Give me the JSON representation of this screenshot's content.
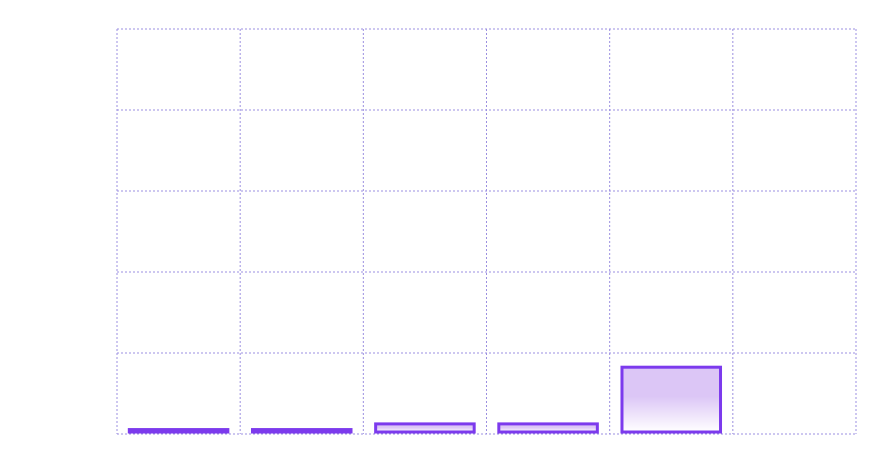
{
  "chart_data": {
    "type": "bar",
    "title": "",
    "xlabel": "",
    "ylabel": "",
    "categories": [
      "",
      "",
      "",
      "",
      "",
      ""
    ],
    "values": [
      0.3,
      0.3,
      1.0,
      1.0,
      8.0,
      0
    ],
    "ylim": [
      0,
      50
    ],
    "grid": true,
    "gridlines": {
      "x_count": 6,
      "y_count": 5
    },
    "colors": {
      "bar_stroke": "#7c3aed",
      "bar_fill_top": "#dcc6f6",
      "bar_fill_bottom": "#ffffff",
      "grid": "#9b8fe0"
    }
  }
}
